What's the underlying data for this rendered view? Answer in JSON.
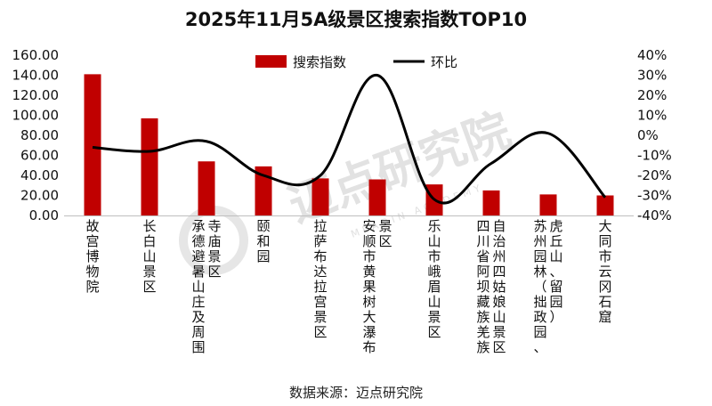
{
  "source": "数据来源：迈点研究院",
  "watermark": {
    "main": "迈点研究院",
    "sub": "MEADIN ACADEMY"
  },
  "colors": {
    "bar": "#C00000",
    "line": "#000000"
  },
  "chart_data": {
    "type": "bar",
    "title": "2025年11月5A级景区搜索指数TOP10",
    "categories": [
      "故宫博物院",
      "长白山景区",
      "承德避暑山庄及周围寺庙景区",
      "颐和园",
      "拉萨布达拉宫景区",
      "安顺市黄果树大瀑布景区",
      "乐山市峨眉山景区",
      "四川省阿坝藏族羌族自治州四姑娘山景区",
      "苏州园林（拙政园、虎丘山、留园）",
      "大同市云冈石窟"
    ],
    "category_lines": [
      [
        "故宫博物院"
      ],
      [
        "长白山景区"
      ],
      [
        "承德避暑山庄及周围",
        "寺庙景区"
      ],
      [
        "颐和园"
      ],
      [
        "拉萨布达拉宫景区"
      ],
      [
        "安顺市黄果树大瀑布",
        "景区"
      ],
      [
        "乐山市峨眉山景区"
      ],
      [
        "四川省阿坝藏族羌族",
        "自治州四姑娘山景区"
      ],
      [
        "苏州园林（拙政园、",
        "虎丘山、留园）"
      ],
      [
        "大同市云冈石窟"
      ]
    ],
    "series": [
      {
        "name": "搜索指数",
        "type": "bar",
        "axis": "left",
        "values": [
          141,
          97,
          54,
          49,
          37,
          36,
          31,
          25,
          21,
          20
        ]
      },
      {
        "name": "环比",
        "type": "line",
        "axis": "right",
        "unit": "%",
        "values": [
          -6,
          -8,
          -3,
          -20,
          -20,
          30,
          -32,
          -14,
          1,
          -31
        ]
      }
    ],
    "y_left": {
      "min": 0,
      "max": 160,
      "step": 20,
      "ticks": [
        "0.00",
        "20.00",
        "40.00",
        "60.00",
        "80.00",
        "100.00",
        "120.00",
        "140.00",
        "160.00"
      ]
    },
    "y_right": {
      "min": -40,
      "max": 40,
      "step": 10,
      "ticks": [
        "-40%",
        "-30%",
        "-20%",
        "-10%",
        "0%",
        "10%",
        "20%",
        "30%",
        "40%"
      ]
    },
    "legend_position": "top-center",
    "grid": false
  }
}
